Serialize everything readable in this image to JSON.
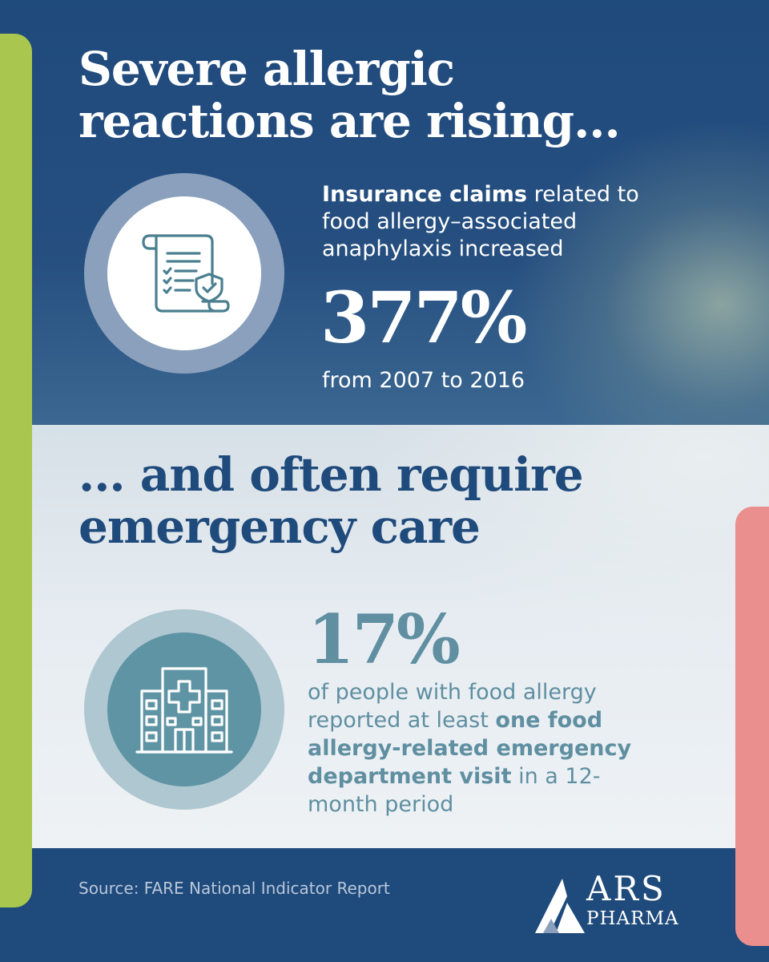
{
  "colors": {
    "navy": "#1f4a7c",
    "teal": "#5f8fa1",
    "green_accent": "#a9c64f",
    "pink_accent": "#ea8e8e"
  },
  "section1": {
    "heading": "Severe allergic reactions are rising...",
    "icon": "insurance-claim-scroll-shield-icon",
    "desc_bold": "Insurance claims",
    "desc_rest": " related to food allergy–associated anaphylaxis increased",
    "stat": "377%",
    "period": "from 2007 to 2016"
  },
  "section2": {
    "heading": "... and often require emergency care",
    "icon": "hospital-building-icon",
    "stat": "17%",
    "desc_part1": "of people with food allergy reported at least ",
    "desc_bold": "one food allergy-related emergency department visit",
    "desc_part2": " in a 12-month period"
  },
  "footer": {
    "source": "Source: FARE National Indicator Report",
    "logo_name": "ARS",
    "logo_sub": "PHARMA"
  }
}
